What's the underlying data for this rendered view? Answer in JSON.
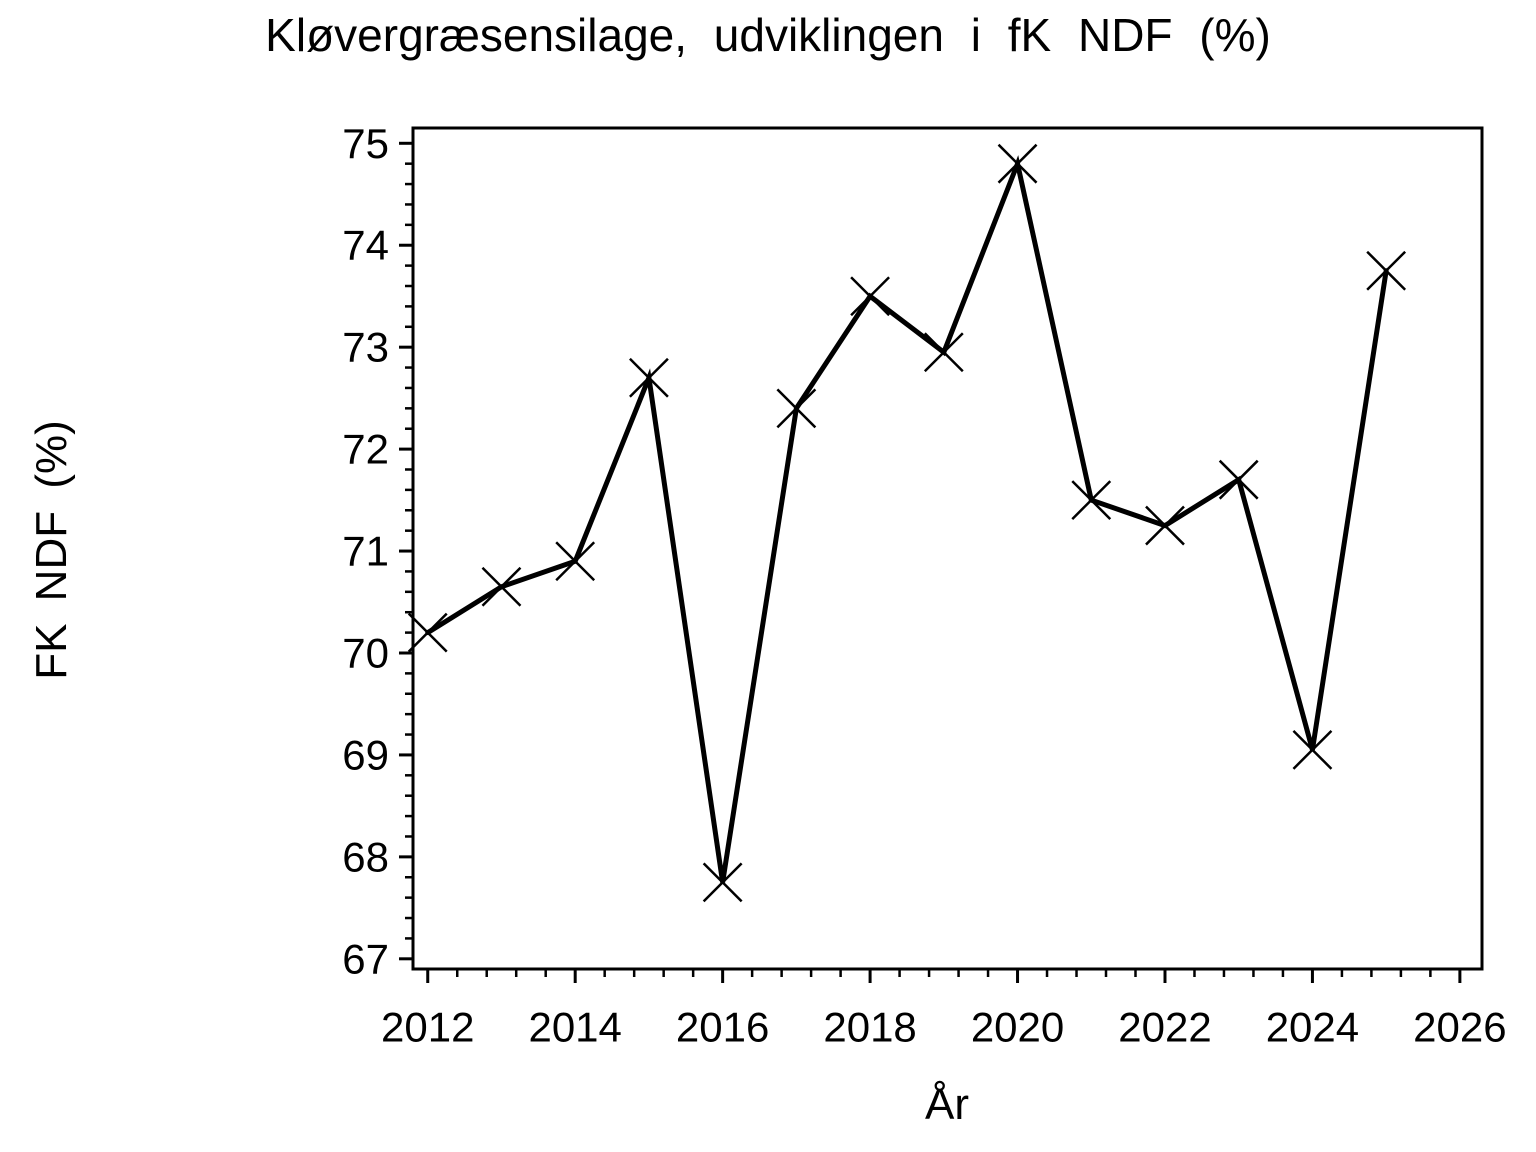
{
  "chart_data": {
    "type": "line",
    "title": "Kløvergræsensilage, udviklingen i fK NDF (%)",
    "xlabel": "År",
    "ylabel": "FK NDF (%)",
    "x": [
      2012,
      2013,
      2014,
      2015,
      2016,
      2017,
      2018,
      2019,
      2020,
      2021,
      2022,
      2023,
      2024,
      2025
    ],
    "values": [
      70.2,
      70.65,
      70.9,
      72.7,
      67.75,
      72.4,
      73.5,
      72.95,
      74.8,
      71.5,
      71.25,
      71.7,
      69.05,
      73.75
    ],
    "xlim": [
      2011.8,
      2026.3
    ],
    "ylim": [
      66.9,
      75.15
    ],
    "xticks_major": [
      2012,
      2014,
      2016,
      2018,
      2020,
      2022,
      2024,
      2026
    ],
    "xtick_labels": [
      "2012",
      "2014",
      "2016",
      "2018",
      "2020",
      "2022",
      "2024",
      "2026"
    ],
    "yticks_major": [
      67,
      68,
      69,
      70,
      71,
      72,
      73,
      74,
      75
    ],
    "ytick_labels": [
      "67",
      "68",
      "69",
      "70",
      "71",
      "72",
      "73",
      "74",
      "75"
    ],
    "x_minor_step": 0.4,
    "y_minor_step": 0.2,
    "marker": "x",
    "line_color": "#000000",
    "axis_color": "#000000",
    "background_color": "#ffffff",
    "grid": false,
    "legend": false
  }
}
